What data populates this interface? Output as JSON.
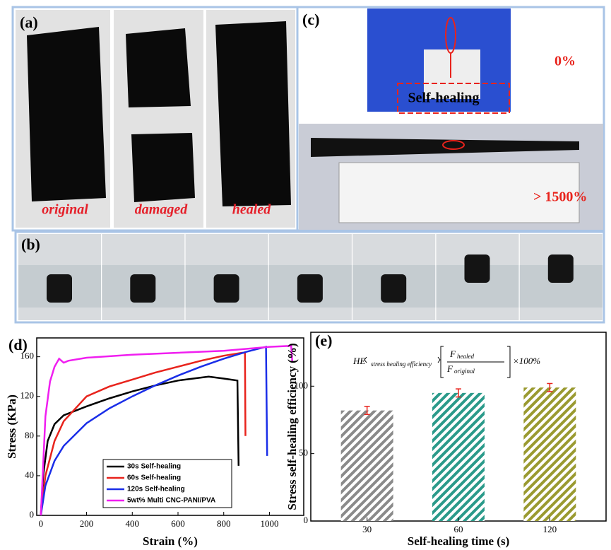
{
  "panels": {
    "a": {
      "label": "(a)",
      "captions": [
        "original",
        "damaged",
        "healed"
      ]
    },
    "b": {
      "label": "(b)"
    },
    "c": {
      "label": "(c)",
      "inset_label": "Self-healing",
      "start_strain": "0%",
      "end_strain": "> 1500%"
    }
  },
  "chart_data": [
    {
      "type": "line",
      "label": "(d)",
      "x_label": "Strain (%)",
      "y_label": "Stress (KPa)",
      "xlim": [
        -18,
        1150
      ],
      "xticks": [
        0,
        200,
        400,
        600,
        800,
        1000
      ],
      "ylim": [
        0,
        179
      ],
      "yticks": [
        0,
        40,
        80,
        120,
        160
      ],
      "legend": "lower center",
      "series": [
        {
          "name": "30s Self-healing",
          "color": "#000000",
          "x": [
            0,
            10,
            30,
            60,
            100,
            200,
            300,
            400,
            500,
            600,
            700,
            734,
            800,
            860,
            865
          ],
          "values": [
            0,
            40,
            75,
            92,
            101,
            110,
            118,
            125,
            131,
            136,
            139,
            140,
            138,
            136,
            50
          ]
        },
        {
          "name": "60s Self-healing",
          "color": "#e8231c",
          "x": [
            0,
            20,
            60,
            100,
            200,
            300,
            400,
            500,
            600,
            700,
            800,
            880,
            893,
            895
          ],
          "values": [
            0,
            40,
            75,
            95,
            120,
            130,
            137,
            144,
            150,
            156,
            161,
            164,
            164,
            80
          ]
        },
        {
          "name": "120s Self-healing",
          "color": "#1a2ee8",
          "x": [
            0,
            20,
            60,
            100,
            200,
            300,
            400,
            500,
            600,
            700,
            800,
            900,
            985,
            990
          ],
          "values": [
            0,
            30,
            55,
            70,
            93,
            108,
            120,
            131,
            141,
            150,
            158,
            165,
            170,
            60
          ]
        },
        {
          "name": "5wt% Multi CNC-PANI/PVA",
          "color": "#f01ef0",
          "x": [
            0,
            20,
            40,
            60,
            80,
            100,
            120,
            200,
            400,
            600,
            800,
            1000,
            1095,
            1100
          ],
          "values": [
            0,
            100,
            135,
            150,
            158,
            154,
            156,
            159,
            162,
            164,
            166,
            170,
            171,
            155
          ]
        }
      ]
    },
    {
      "type": "bar",
      "label": "(e)",
      "x_label": "Self-healing time (s)",
      "y_label": "Stress self-healing efficiency (%)",
      "categories": [
        "30",
        "60",
        "120"
      ],
      "values": [
        82,
        95,
        99
      ],
      "errors": [
        3,
        3,
        3
      ],
      "colors": [
        "#8a8a8a",
        "#2a9a8a",
        "#9a9a30"
      ],
      "error_color": "#e8231c",
      "hatch": true,
      "ylim": [
        0,
        140
      ],
      "yticks": [
        0,
        50,
        100
      ],
      "equation": {
        "lhs": "HE",
        "lhs_sub": "stress healing efficiency",
        "num": "F",
        "num_sub": "healed",
        "den": "F",
        "den_sub": "original",
        "factor": "×100%"
      }
    }
  ]
}
